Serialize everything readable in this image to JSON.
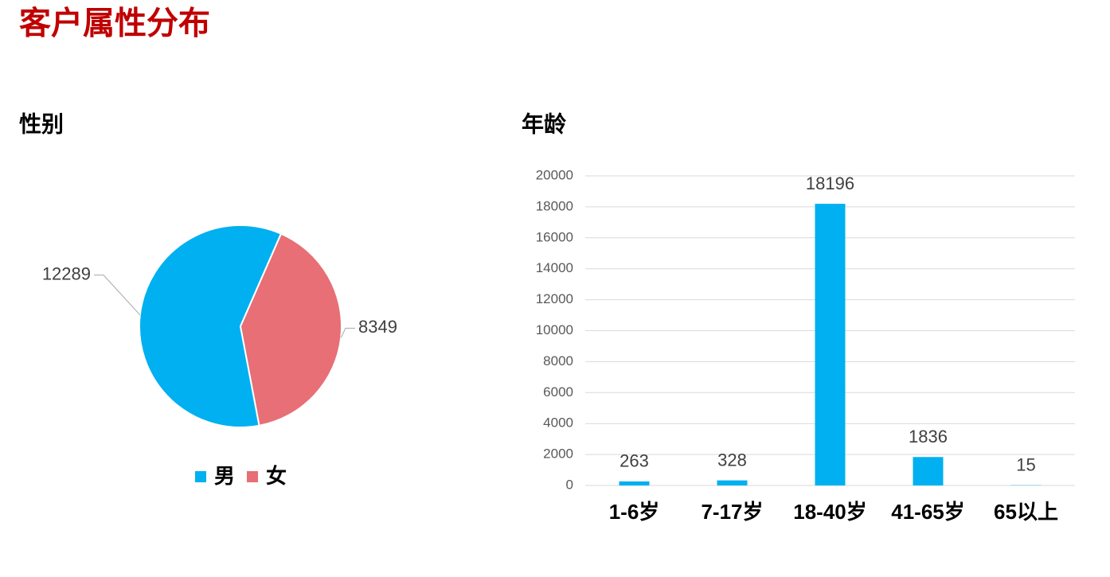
{
  "title": "客户属性分布",
  "chart_data": [
    {
      "type": "pie",
      "title": "性别",
      "categories": [
        "男",
        "女"
      ],
      "values": [
        12289,
        8349
      ],
      "colors": [
        "#00b0f0",
        "#e76f75"
      ],
      "legend": "bottom"
    },
    {
      "type": "bar",
      "title": "年龄",
      "categories": [
        "1-6岁",
        "7-17岁",
        "18-40岁",
        "41-65岁",
        "65以上"
      ],
      "values": [
        263,
        328,
        18196,
        1836,
        15
      ],
      "color": "#00b0f0",
      "ylim": [
        0,
        20000
      ],
      "yticks": [
        0,
        2000,
        4000,
        6000,
        8000,
        10000,
        12000,
        14000,
        16000,
        18000,
        20000
      ],
      "grid": true
    }
  ]
}
